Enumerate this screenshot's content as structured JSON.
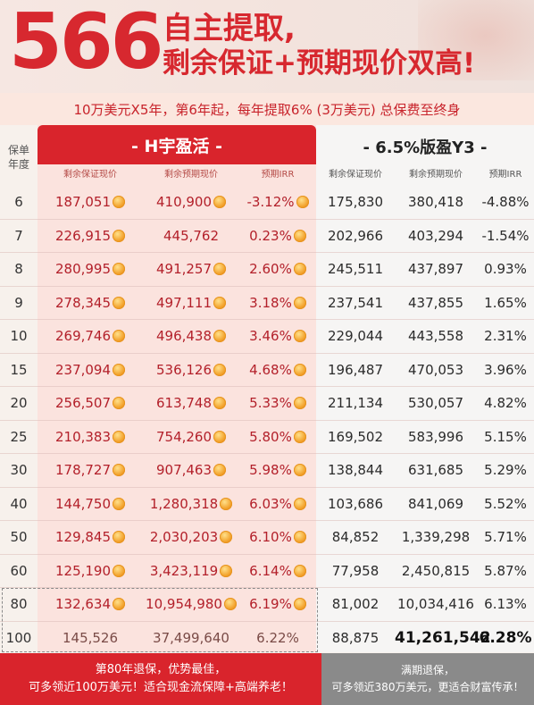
{
  "header": {
    "big_number": "566",
    "title_line1": "自主提取,",
    "title_line2": "剩余保证+预期现价双高!",
    "subline": "10万美元X5年，第6年起，每年提取6% (3万美元) 总保费至终身"
  },
  "colors": {
    "accent": "#d9242c",
    "left_panel": "#fbe3de",
    "right_panel": "#f6f5f4"
  },
  "table": {
    "year_header": [
      "保单",
      "年度"
    ],
    "left_title": "- H宇盈活 -",
    "right_title": "- 6.5%版盈Y3 -",
    "left_columns": [
      "剩余保证现价",
      "剩余预期现价",
      "预期IRR"
    ],
    "right_columns": [
      "剩余保证现价",
      "剩余预期现价",
      "预期IRR"
    ],
    "rows": [
      {
        "year": "6",
        "l": [
          "187,051",
          "410,900",
          "-3.12%"
        ],
        "r": [
          "175,830",
          "380,418",
          "-4.88%"
        ]
      },
      {
        "year": "7",
        "l": [
          "226,915",
          "445,762",
          "0.23%"
        ],
        "r": [
          "202,966",
          "403,294",
          "-1.54%"
        ]
      },
      {
        "year": "8",
        "l": [
          "280,995",
          "491,257",
          "2.60%"
        ],
        "r": [
          "245,511",
          "437,897",
          "0.93%"
        ]
      },
      {
        "year": "9",
        "l": [
          "278,345",
          "497,111",
          "3.18%"
        ],
        "r": [
          "237,541",
          "437,855",
          "1.65%"
        ]
      },
      {
        "year": "10",
        "l": [
          "269,746",
          "496,438",
          "3.46%"
        ],
        "r": [
          "229,044",
          "443,558",
          "2.31%"
        ]
      },
      {
        "year": "15",
        "l": [
          "237,094",
          "536,126",
          "4.68%"
        ],
        "r": [
          "196,487",
          "470,053",
          "3.96%"
        ]
      },
      {
        "year": "20",
        "l": [
          "256,507",
          "613,748",
          "5.33%"
        ],
        "r": [
          "211,134",
          "530,057",
          "4.82%"
        ]
      },
      {
        "year": "25",
        "l": [
          "210,383",
          "754,260",
          "5.80%"
        ],
        "r": [
          "169,502",
          "583,996",
          "5.15%"
        ]
      },
      {
        "year": "30",
        "l": [
          "178,727",
          "907,463",
          "5.98%"
        ],
        "r": [
          "138,844",
          "631,685",
          "5.29%"
        ]
      },
      {
        "year": "40",
        "l": [
          "144,750",
          "1,280,318",
          "6.03%"
        ],
        "r": [
          "103,686",
          "841,069",
          "5.52%"
        ]
      },
      {
        "year": "50",
        "l": [
          "129,845",
          "2,030,203",
          "6.10%"
        ],
        "r": [
          "84,852",
          "1,339,298",
          "5.71%"
        ]
      },
      {
        "year": "60",
        "l": [
          "125,190",
          "3,423,119",
          "6.14%"
        ],
        "r": [
          "77,958",
          "2,450,815",
          "5.87%"
        ]
      },
      {
        "year": "80",
        "l": [
          "132,634",
          "10,954,980",
          "6.19%"
        ],
        "r": [
          "81,002",
          "10,034,416",
          "6.13%"
        ]
      },
      {
        "year": "100",
        "l": [
          "145,526",
          "37,499,640",
          "6.22%"
        ],
        "r": [
          "88,875",
          "41,261,542",
          "6.28%"
        ]
      }
    ]
  },
  "footer": {
    "left_line1": "第80年退保，优势最佳，",
    "left_line2": "可多领近100万美元！适合现金流保障+高端养老！",
    "right_line1": "满期退保，",
    "right_line2": "可多领近380万美元，更适合财富传承！"
  }
}
